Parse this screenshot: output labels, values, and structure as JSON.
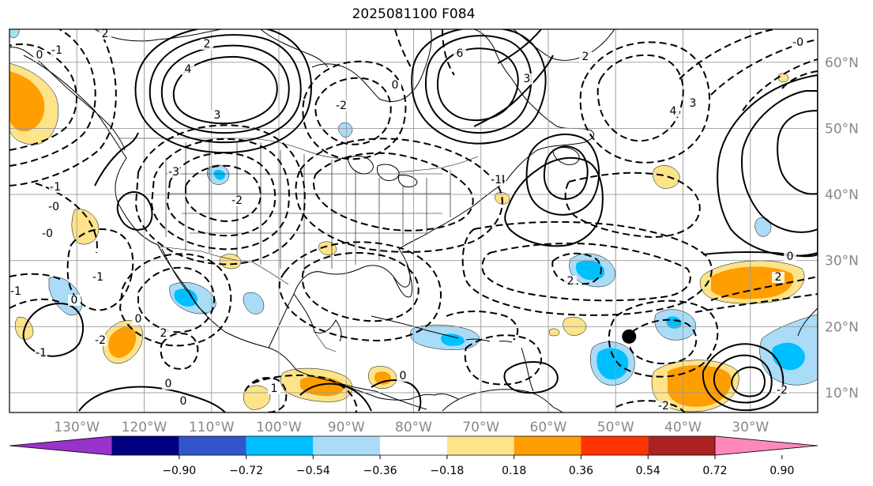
{
  "title": "2025081100 F084",
  "map": {
    "lon_range": [
      -140,
      -20
    ],
    "lat_range": [
      7,
      65
    ],
    "lon_labels": [
      "130°W",
      "120°W",
      "110°W",
      "100°W",
      "90°W",
      "80°W",
      "70°W",
      "60°W",
      "50°W",
      "40°W",
      "30°W"
    ],
    "lon_values": [
      -130,
      -120,
      -110,
      -100,
      -90,
      -80,
      -70,
      -60,
      -50,
      -40,
      -30
    ],
    "lat_labels": [
      "60°N",
      "50°N",
      "40°N",
      "30°N",
      "20°N",
      "10°N"
    ],
    "lat_values": [
      60,
      50,
      40,
      30,
      20,
      10
    ],
    "marker": {
      "lon": -48,
      "lat": 18.5,
      "name": "black-dot-marker"
    }
  },
  "contour_labels": [
    "2",
    "0",
    "-1",
    "-0",
    "-2",
    "-3",
    "4",
    "3",
    "2",
    "-2",
    "6",
    "-4",
    "3",
    "2",
    "-1",
    "0",
    "-0",
    "3",
    "4",
    "-1",
    "-0",
    "2",
    "-1",
    "-1",
    "-2",
    "0",
    "2",
    "-1",
    "0",
    "0",
    "-2",
    "-2",
    "0",
    "0",
    "1",
    "0",
    "2"
  ],
  "colorbar": {
    "colors": [
      "#9933cc",
      "#000080",
      "#3355cc",
      "#00bfff",
      "#aadcf7",
      "#ffffff",
      "#fde38a",
      "#ff9e00",
      "#ff3300",
      "#aa2222",
      "#ff88bb"
    ],
    "ticks": [
      "−0.90",
      "−0.72",
      "−0.54",
      "−0.36",
      "−0.18",
      "0.18",
      "0.36",
      "0.54",
      "0.72",
      "0.90"
    ]
  }
}
